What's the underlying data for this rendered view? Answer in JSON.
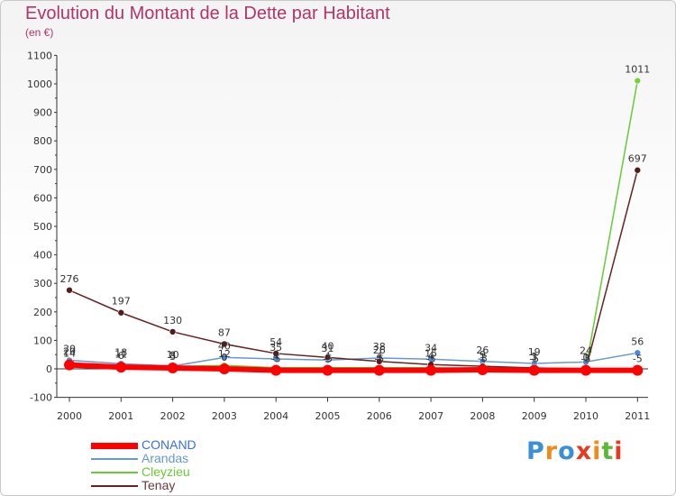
{
  "chart_title": "Evolution du Montant de la Dette par Habitant",
  "unit_label": "(en €)",
  "chart_data": {
    "type": "line",
    "title": "Evolution du Montant de la Dette par Habitant",
    "subtitle": "(en €)",
    "xlabel": "",
    "ylabel": "",
    "x": [
      "2000",
      "2001",
      "2002",
      "2003",
      "2004",
      "2005",
      "2006",
      "2007",
      "2008",
      "2009",
      "2010",
      "2011"
    ],
    "ylim": [
      -100,
      1100
    ],
    "yticks": [
      "-100",
      "0",
      "100",
      "200",
      "300",
      "400",
      "500",
      "600",
      "700",
      "800",
      "900",
      "1000",
      "1100"
    ],
    "grid": false,
    "legend_position": "bottom-left",
    "series": [
      {
        "name": "CONAND",
        "color": "#ff0000",
        "values": [
          14,
          6,
          3,
          0,
          -5,
          -5,
          -5,
          -5,
          -3,
          -5,
          -5,
          -5
        ],
        "labels": [
          "14",
          "6",
          "3",
          "0",
          "-5",
          "-5",
          "-5",
          "-5",
          "-3",
          "-5",
          "-5",
          "-5"
        ]
      },
      {
        "name": "Arandas",
        "color": "#6699cc",
        "values": [
          30,
          18,
          10,
          40,
          35,
          31,
          38,
          34,
          26,
          19,
          24,
          56
        ],
        "labels": [
          "30",
          "18",
          "10",
          "40",
          "35",
          "31",
          "38",
          "34",
          "26",
          "19",
          "24",
          "56"
        ]
      },
      {
        "name": "Cleyzieu",
        "color": "#66cc33",
        "values": [
          20,
          11,
          8,
          12,
          4,
          4,
          4,
          4,
          1,
          1,
          1,
          1011
        ],
        "labels": [
          "20",
          "11",
          "8",
          "12",
          "4",
          "4",
          "4",
          "4",
          "1",
          "1",
          "1",
          "1011"
        ]
      },
      {
        "name": "Tenay",
        "color": "#662222",
        "values": [
          276,
          197,
          130,
          87,
          54,
          40,
          26,
          15,
          9,
          3,
          0,
          697
        ],
        "labels": [
          "276",
          "197",
          "130",
          "87",
          "54",
          "40",
          "26",
          "15",
          "9",
          "3",
          "0",
          "697"
        ]
      }
    ]
  },
  "brand": {
    "name": "Proxiti",
    "letters": [
      "P",
      "r",
      "o",
      "x",
      "i",
      "t",
      "i"
    ],
    "colors": [
      "#3a8fd8",
      "#f08a1c",
      "#3a8fd8",
      "#e8381e",
      "#f08a1c",
      "#5fb833",
      "#e8381e"
    ]
  }
}
